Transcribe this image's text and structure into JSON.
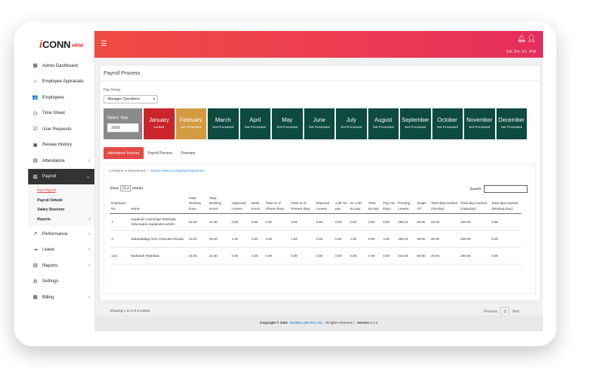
{
  "brand": {
    "prefix": "i",
    "name": "CONN",
    "suffix": "HRM"
  },
  "header": {
    "menu_icon": "hamburger-icon",
    "clock": "08:34:42 PM"
  },
  "sidebar": {
    "items": [
      {
        "label": "Admin Dashboard",
        "icon": "dashboard-icon"
      },
      {
        "label": "Employee Appraisals",
        "icon": "star-icon"
      },
      {
        "label": "Employees",
        "icon": "users-icon"
      },
      {
        "label": "Time Sheet",
        "icon": "clock-icon"
      },
      {
        "label": "User Requests",
        "icon": "request-icon"
      },
      {
        "label": "Review History",
        "icon": "calendar-icon"
      },
      {
        "label": "Attendance",
        "icon": "attendance-icon"
      },
      {
        "label": "Payroll",
        "icon": "payroll-icon"
      }
    ],
    "payroll_sub": [
      {
        "label": "Run Payroll"
      },
      {
        "label": "Payroll Onhold"
      },
      {
        "label": "Salary Structure"
      },
      {
        "label": "Reports"
      }
    ],
    "items_after": [
      {
        "label": "Performance",
        "icon": "chart-icon"
      },
      {
        "label": "Leave",
        "icon": "leave-icon"
      },
      {
        "label": "Reports",
        "icon": "report-icon"
      },
      {
        "label": "Settings",
        "icon": "gear-icon"
      },
      {
        "label": "Billing",
        "icon": "billing-icon"
      }
    ]
  },
  "page": {
    "title": "Payroll Process",
    "pay_group_label": "Pay Group",
    "pay_group_value": "Manager Operations",
    "select_year_label": "Select Year",
    "year_value": "2020"
  },
  "months": [
    {
      "name": "January",
      "status": "Locked"
    },
    {
      "name": "February",
      "status": "Not Processed"
    },
    {
      "name": "March",
      "status": "Not Processed"
    },
    {
      "name": "April",
      "status": "Not Processed"
    },
    {
      "name": "May",
      "status": "Not Processed"
    },
    {
      "name": "June",
      "status": "Not Processed"
    },
    {
      "name": "July",
      "status": "Not Processed"
    },
    {
      "name": "August",
      "status": "Not Processed"
    },
    {
      "name": "September",
      "status": "Not Processed"
    },
    {
      "name": "October",
      "status": "Not Processed"
    },
    {
      "name": "November",
      "status": "Not Processed"
    },
    {
      "name": "December",
      "status": "Not Processed"
    }
  ],
  "tabs": [
    "Attendance Process",
    "Payroll Process",
    "Overview"
  ],
  "company_label": "Company & Department * :",
  "company_link": "Please select Company/Department",
  "table_controls": {
    "show_label": "Show",
    "entries_value": "10",
    "entries_label": "entries",
    "search_label": "Search:"
  },
  "table": {
    "columns": [
      "Employee No.",
      "Name",
      "Total Working Days",
      "Total Working Hours",
      "Approved Leaves",
      "Work Hours",
      "Total no of Absent Days",
      "Total no of Present days",
      "Rejected Leaves",
      "Auth No pay",
      "Un Auth No pay",
      "Total No pay",
      "Pay Cut Days",
      "Pending Leaves",
      "Single OT",
      "Total days worked (Sunday)",
      "Total days worked (Saturday)",
      "Total days worked (Working Day)"
    ],
    "rows": [
      [
        "7",
        "Jayakodi Arachchige Wathsala Vidurayana JayakodiArachchi",
        "22.00",
        "21.00",
        "0.00",
        "0.00",
        "0.00",
        "0.00",
        "0.00",
        "0.00",
        "0.00",
        "0.00",
        "0.00",
        "259:14",
        "00:00",
        "20.00",
        "200:00",
        "0.00"
      ],
      [
        "3",
        "Nakandalage Don Chanuka Pamidu",
        "24.00",
        "20.00",
        "1.00",
        "2.00",
        "1.00",
        "1.50",
        "0.00",
        "0.00",
        "1.00",
        "0.00",
        "1.00",
        "168:13",
        "00:00",
        "20.00",
        "200:00",
        "0.00"
      ],
      [
        "134",
        "Muthaiah Parthiban",
        "23.00",
        "21.00",
        "0.00",
        "1.00",
        "0.00",
        "0.00",
        "0.00",
        "0.00",
        "0.00",
        "0.00",
        "0.00",
        "216:03",
        "00:00",
        "20.00",
        "200:00",
        "0.00"
      ]
    ]
  },
  "showing": "Showing 1 to 3 of 3 entries",
  "pagination": {
    "previous": "Previous",
    "page": "1",
    "next": "Next"
  },
  "footer": {
    "copyright": "Copyright © 2020",
    "company": "iCONN Labs Pvt Ltd.",
    "rights": "All rights reserved. |",
    "version_label": "Version:",
    "version": "4.2.2"
  }
}
